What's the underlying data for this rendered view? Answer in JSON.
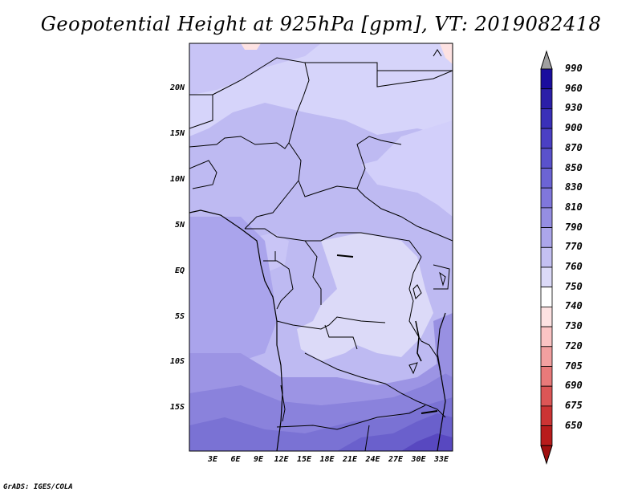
{
  "title": "Geopotential Height at 925hPa [gpm], VT: 2019082418",
  "footer": "GrADS: IGES/COLA",
  "lat_labels": [
    "20N",
    "15N",
    "10N",
    "5N",
    "EQ",
    "5S",
    "10S",
    "15S"
  ],
  "lon_labels": [
    "3E",
    "6E",
    "9E",
    "12E",
    "15E",
    "18E",
    "21E",
    "24E",
    "27E",
    "30E",
    "33E"
  ],
  "colorbar": {
    "labels": [
      "990",
      "960",
      "930",
      "900",
      "870",
      "850",
      "830",
      "810",
      "790",
      "770",
      "760",
      "750",
      "740",
      "730",
      "720",
      "705",
      "690",
      "675",
      "650"
    ],
    "colors": [
      "#a0a0a0",
      "#1a0d9e",
      "#2b1fa8",
      "#3a30b8",
      "#4b40c4",
      "#5a52cc",
      "#6c64d4",
      "#8077dc",
      "#958ee2",
      "#aca6ea",
      "#c4c0f2",
      "#dcdaf8",
      "#ffffff",
      "#fde2e2",
      "#fbc4c4",
      "#f2a0a0",
      "#e87a7a",
      "#dc5656",
      "#cc3434",
      "#b81c1c",
      "#a01010"
    ]
  }
}
